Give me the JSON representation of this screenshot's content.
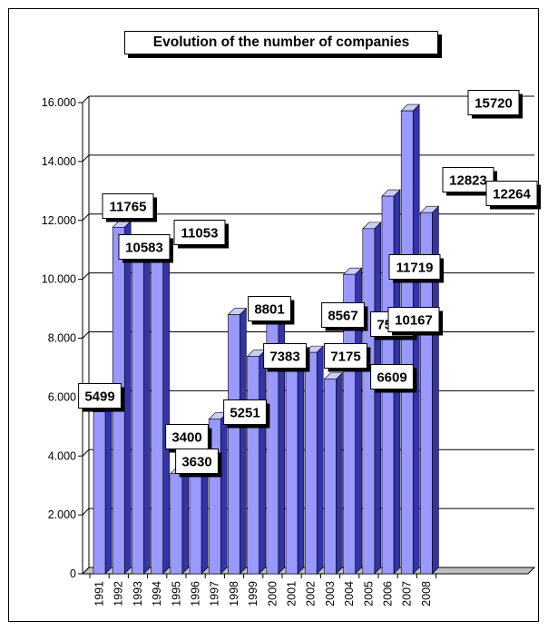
{
  "title": "Evolution of the number of companies",
  "colors": {
    "bar_front": "#9999ff",
    "bar_side": "#3333aa",
    "bar_top": "#ccccff",
    "grid": "#000000",
    "frame": "#000000"
  },
  "chart_data": {
    "type": "bar",
    "title": "Evolution of the number of companies",
    "xlabel": "",
    "ylabel": "",
    "categories": [
      "1991",
      "1992",
      "1993",
      "1994",
      "1995",
      "1996",
      "1997",
      "1998",
      "1999",
      "2000",
      "2001",
      "2002",
      "2003",
      "2004",
      "2005",
      "2006",
      "2007",
      "2008"
    ],
    "values": [
      5499,
      11765,
      10583,
      11053,
      3400,
      3630,
      5251,
      8801,
      7383,
      8567,
      7175,
      7518,
      6609,
      10167,
      11719,
      12823,
      15720,
      12264
    ],
    "ylim": [
      0,
      16000
    ],
    "y_ticks": [
      0,
      2000,
      4000,
      6000,
      8000,
      10000,
      12000,
      14000,
      16000
    ],
    "y_tick_labels": [
      "0",
      "2.000",
      "4.000",
      "6.000",
      "8.000",
      "10.000",
      "12.000",
      "14.000",
      "16.000"
    ],
    "data_labels": [
      "5499",
      "11765",
      "10583",
      "11053",
      "3400",
      "3630",
      "5251",
      "8801",
      "7383",
      "8567",
      "7175",
      "7518",
      "6609",
      "10167",
      "11719",
      "12823",
      "15720",
      "12264"
    ],
    "grid": true,
    "legend": "none",
    "style": "3d-column"
  }
}
